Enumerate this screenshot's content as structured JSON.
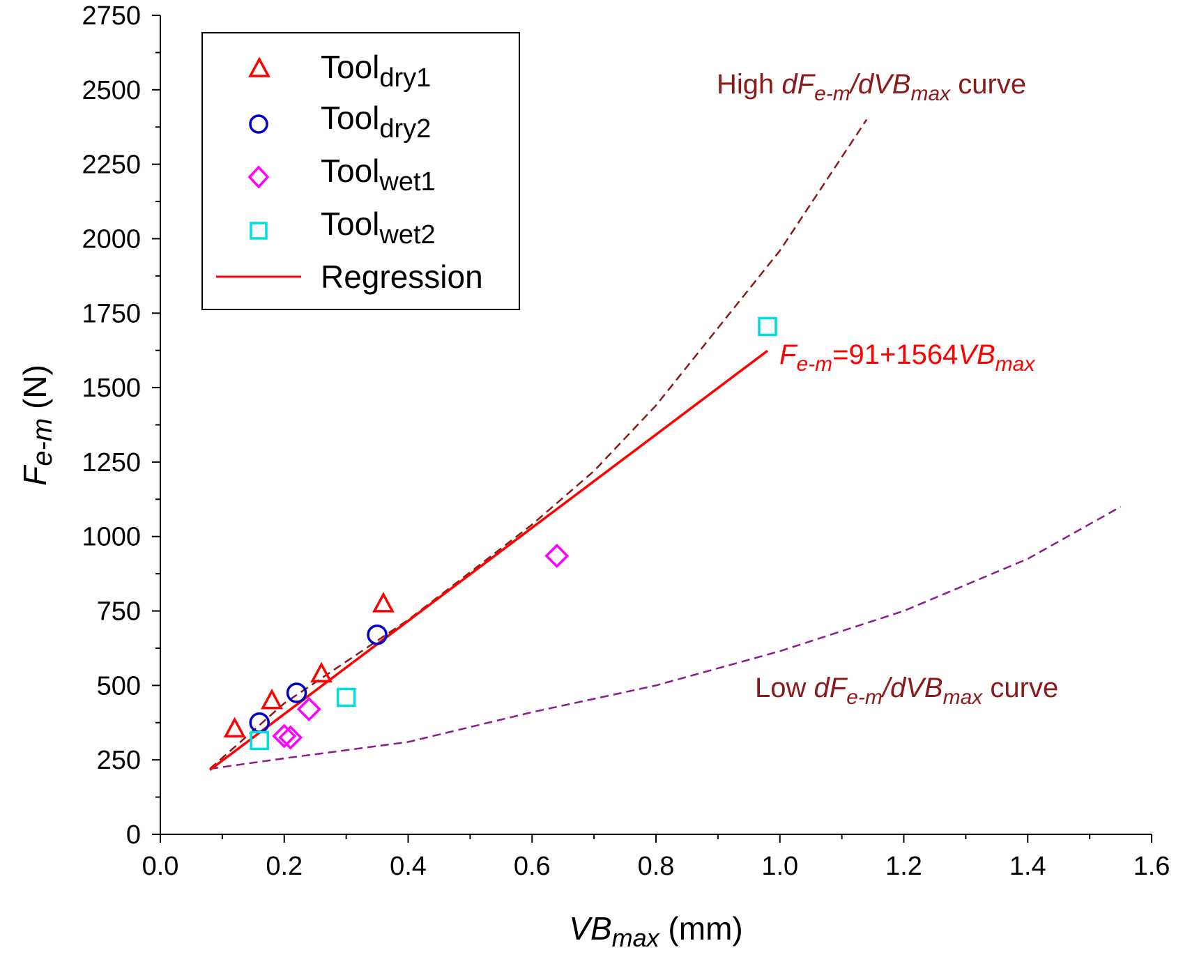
{
  "chart_data": {
    "type": "scatter",
    "xlabel": {
      "main": "VB",
      "sub": "max",
      "unit": " (mm)"
    },
    "ylabel": {
      "main": "F",
      "sub": "e-m",
      "unit": " (N)"
    },
    "xlim": [
      0,
      1.6
    ],
    "ylim": [
      0,
      2750
    ],
    "xticks": [
      "0.0",
      "0.2",
      "0.4",
      "0.6",
      "0.8",
      "1.0",
      "1.2",
      "1.4",
      "1.6"
    ],
    "yticks": [
      "0",
      "250",
      "500",
      "750",
      "1000",
      "1250",
      "1500",
      "1750",
      "2000",
      "2250",
      "2500",
      "2750"
    ],
    "grid": false,
    "legend_position": "top-left",
    "series": [
      {
        "name": "Tool",
        "sub": "dry1",
        "marker": "triangle",
        "color": "#ff0000",
        "points": [
          [
            0.12,
            355
          ],
          [
            0.18,
            450
          ],
          [
            0.26,
            540
          ],
          [
            0.36,
            775
          ]
        ]
      },
      {
        "name": "Tool",
        "sub": "dry2",
        "marker": "circle",
        "color": "#0000cc",
        "points": [
          [
            0.16,
            375
          ],
          [
            0.22,
            475
          ],
          [
            0.35,
            670
          ]
        ]
      },
      {
        "name": "Tool",
        "sub": "wet1",
        "marker": "diamond",
        "color": "#ff00ff",
        "points": [
          [
            0.2,
            330
          ],
          [
            0.21,
            325
          ],
          [
            0.24,
            420
          ],
          [
            0.64,
            935
          ]
        ]
      },
      {
        "name": "Tool",
        "sub": "wet2",
        "marker": "square",
        "color": "#00dddd",
        "points": [
          [
            0.16,
            315
          ],
          [
            0.3,
            460
          ],
          [
            0.98,
            1705
          ]
        ]
      }
    ],
    "regression": {
      "name": "Regression",
      "color": "#ff0000",
      "intercept": 91,
      "slope": 1564,
      "x_range": [
        0.08,
        0.98
      ],
      "label": {
        "main": "F",
        "sub": "e-m",
        "rest": "=91+1564",
        "var": "VB",
        "var_sub": "max"
      }
    },
    "curves": [
      {
        "name": "high",
        "color": "#8b1a1a",
        "points": [
          [
            0.08,
            220
          ],
          [
            0.2,
            440
          ],
          [
            0.3,
            580
          ],
          [
            0.4,
            720
          ],
          [
            0.5,
            880
          ],
          [
            0.6,
            1040
          ],
          [
            0.7,
            1220
          ],
          [
            0.8,
            1440
          ],
          [
            0.9,
            1700
          ],
          [
            1.0,
            1960
          ],
          [
            1.14,
            2400
          ]
        ],
        "label": {
          "pre": "High ",
          "d1": "dF",
          "sub1": "e-m",
          "slash": "/",
          "d2": "dVB",
          "sub2": "max",
          "post": " curve"
        }
      },
      {
        "name": "low",
        "color": "#8b1a8b",
        "points": [
          [
            0.08,
            220
          ],
          [
            0.2,
            255
          ],
          [
            0.4,
            310
          ],
          [
            0.6,
            410
          ],
          [
            0.8,
            500
          ],
          [
            1.0,
            615
          ],
          [
            1.2,
            750
          ],
          [
            1.4,
            925
          ],
          [
            1.55,
            1100
          ]
        ],
        "label": {
          "pre": "Low ",
          "d1": "dF",
          "sub1": "e-m",
          "slash": "/",
          "d2": "dVB",
          "sub2": "max",
          "post": " curve"
        }
      }
    ]
  }
}
